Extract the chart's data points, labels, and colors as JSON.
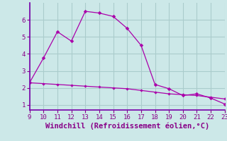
{
  "x": [
    9,
    10,
    11,
    12,
    13,
    14,
    15,
    16,
    17,
    18,
    19,
    20,
    21,
    22,
    23
  ],
  "y_upper": [
    2.3,
    3.75,
    5.3,
    4.75,
    6.5,
    6.4,
    6.2,
    5.5,
    4.5,
    2.2,
    1.95,
    1.55,
    1.65,
    1.4,
    1.05
  ],
  "y_lower": [
    2.3,
    2.25,
    2.2,
    2.15,
    2.1,
    2.05,
    2.0,
    1.95,
    1.85,
    1.75,
    1.65,
    1.6,
    1.55,
    1.45,
    1.35
  ],
  "line_color": "#aa00aa",
  "bg_color": "#cce8e8",
  "grid_color": "#aacccc",
  "text_color": "#880088",
  "spine_color": "#7700aa",
  "xlabel": "Windchill (Refroidissement éolien,°C)",
  "xlim": [
    9,
    23
  ],
  "ylim": [
    0.7,
    7.0
  ],
  "yticks": [
    1,
    2,
    3,
    4,
    5,
    6
  ],
  "xticks": [
    9,
    10,
    11,
    12,
    13,
    14,
    15,
    16,
    17,
    18,
    19,
    20,
    21,
    22,
    23
  ],
  "tick_fontsize": 6.5,
  "xlabel_fontsize": 7.5
}
